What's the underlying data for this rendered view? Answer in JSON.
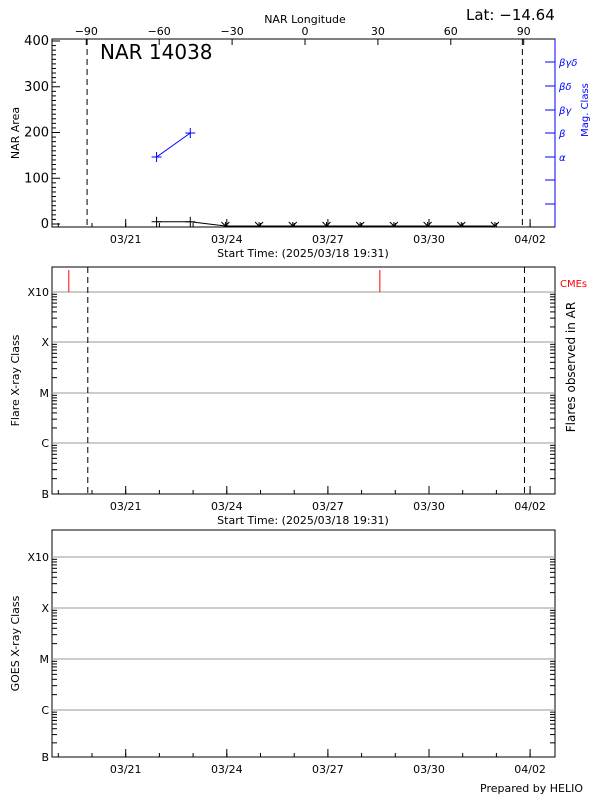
{
  "header": {
    "lat_label": "Lat: −14.64",
    "footer": "Prepared by HELIO"
  },
  "colors": {
    "axis": "#000000",
    "mag": "#0000ff",
    "cme": "#ff0000",
    "grid": "#999999"
  },
  "chart_data": [
    {
      "type": "scatter",
      "title": "NAR 14038",
      "ylabel": "NAR Area",
      "xlabel": "Start Time: (2025/03/18 19:31)",
      "top_axis_label": "NAR Longitude",
      "top_ticks": [
        "-90",
        "-60",
        "-30",
        "0",
        "30",
        "60",
        "90"
      ],
      "top_tick_values": [
        -90,
        -60,
        -30,
        0,
        30,
        60,
        90
      ],
      "right_axis_label": "Mag. Class",
      "right_ticks": [
        "α",
        "β",
        "βγ",
        "βδ",
        "βγδ"
      ],
      "xlim": [
        "2025-03-18T19:31",
        "2025-04-02T17:00"
      ],
      "xticks": [
        "03/21",
        "03/24",
        "03/27",
        "03/30",
        "04/02"
      ],
      "xtick_dates": [
        "2025-03-21T00:00",
        "2025-03-24T00:00",
        "2025-03-27T00:00",
        "2025-03-30T00:00",
        "2025-04-02T00:00"
      ],
      "ylim": [
        0,
        400
      ],
      "yticks": [
        0,
        100,
        200,
        300,
        400
      ],
      "limb_lines": [
        "2025-03-19T20:30",
        "2025-04-01T18:30"
      ],
      "area_points": [
        {
          "t": "2025-03-21T22:00",
          "v": 5
        },
        {
          "t": "2025-03-22T22:00",
          "v": 5
        }
      ],
      "zero_points": [
        "2025-03-23T23:00",
        "2025-03-24T23:00",
        "2025-03-25T23:00",
        "2025-03-26T23:00",
        "2025-03-27T23:00",
        "2025-03-28T23:00",
        "2025-03-29T23:00",
        "2025-03-30T23:00",
        "2025-03-31T23:00"
      ],
      "mag_points": [
        {
          "t": "2025-03-21T22:00",
          "class": "α"
        },
        {
          "t": "2025-03-22T22:00",
          "class": "β"
        }
      ]
    },
    {
      "type": "scatter",
      "ylabel": "Flare X-ray Class",
      "right_axis_label": "Flares observed in AR",
      "cme_label": "CMEs",
      "xlabel": "Start Time: (2025/03/18 19:31)",
      "yticks": [
        "B",
        "C",
        "M",
        "X",
        "X10"
      ],
      "xticks": [
        "03/21",
        "03/24",
        "03/27",
        "03/30",
        "04/02"
      ],
      "limb_lines": [
        "2025-03-19T21:00",
        "2025-04-01T20:00"
      ],
      "cmes": [
        "2025-03-19T07:30",
        "2025-03-28T13:00"
      ],
      "flares": []
    },
    {
      "type": "scatter",
      "ylabel": "GOES X-ray Class",
      "yticks": [
        "B",
        "C",
        "M",
        "X",
        "X10"
      ],
      "xticks": [
        "03/21",
        "03/24",
        "03/27",
        "03/30",
        "04/02"
      ],
      "series": []
    }
  ]
}
